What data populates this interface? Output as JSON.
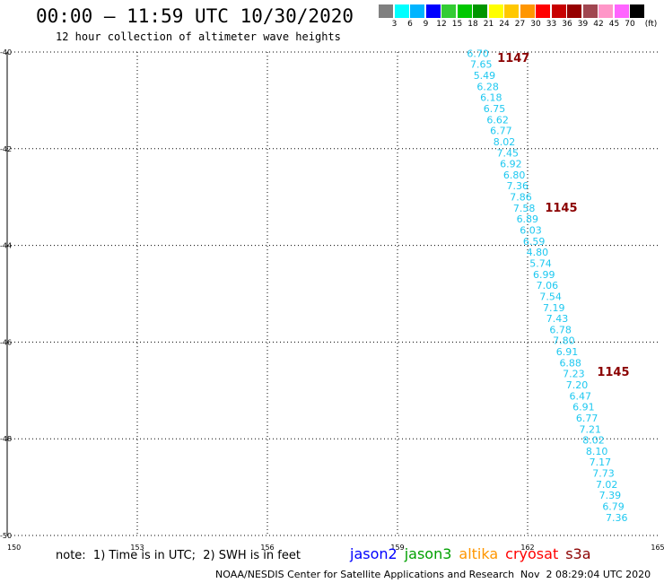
{
  "header": {
    "title": "00:00 – 11:59 UTC 10/30/2020",
    "subtitle": "12 hour collection of altimeter wave heights"
  },
  "colorbar": {
    "unit_label": "(ft)",
    "swatches": [
      {
        "color": "#808080",
        "label": ""
      },
      {
        "color": "#00ffff",
        "label": "3"
      },
      {
        "color": "#00b4ff",
        "label": "6"
      },
      {
        "color": "#0000ff",
        "label": "9"
      },
      {
        "color": "#33cc33",
        "label": "12"
      },
      {
        "color": "#00c800",
        "label": "15"
      },
      {
        "color": "#009600",
        "label": "18"
      },
      {
        "color": "#ffff00",
        "label": "21"
      },
      {
        "color": "#ffc800",
        "label": "24"
      },
      {
        "color": "#ff9600",
        "label": "27"
      },
      {
        "color": "#ff0000",
        "label": "30"
      },
      {
        "color": "#c80000",
        "label": "33"
      },
      {
        "color": "#960000",
        "label": "36"
      },
      {
        "color": "#a04650",
        "label": "39"
      },
      {
        "color": "#ff96c8",
        "label": "42"
      },
      {
        "color": "#ff64ff",
        "label": "45"
      },
      {
        "color": "#000000",
        "label": "70"
      }
    ]
  },
  "map": {
    "lon_ticks": [
      "150",
      "153",
      "156",
      "159",
      "162",
      "165"
    ],
    "lat_ticks": [
      "-40",
      "-42",
      "-44",
      "-46",
      "-48",
      "-50"
    ],
    "lon_range": [
      150,
      165
    ],
    "lat_range": [
      -40,
      -50
    ],
    "track_color": "#1ec8f0",
    "wave_heights": [
      "6.70",
      "7.65",
      "5.49",
      "6.28",
      "6.18",
      "6.75",
      "6.62",
      "6.77",
      "8.02",
      "7.45",
      "6.92",
      "6.80",
      "7.36",
      "7.86",
      "7.58",
      "6.89",
      "6.03",
      "6.59",
      "4.80",
      "5.74",
      "6.99",
      "7.06",
      "7.54",
      "7.19",
      "7.43",
      "6.78",
      "7.80",
      "6.91",
      "6.88",
      "7.23",
      "7.20",
      "6.47",
      "6.91",
      "6.77",
      "7.21",
      "8.02",
      "8.10",
      "7.17",
      "7.73",
      "7.02",
      "7.39",
      "6.79",
      "7.36"
    ],
    "pass_labels": [
      {
        "text": "1147",
        "lon": 161.3,
        "lat": -40.2
      },
      {
        "text": "1145",
        "lon": 162.4,
        "lat": -43.3
      },
      {
        "text": "1145",
        "lon": 163.6,
        "lat": -46.7
      }
    ],
    "track_start": {
      "lon": 160.6,
      "lat": -40.1
    },
    "track_end": {
      "lon": 163.8,
      "lat": -49.7
    }
  },
  "note": "note:  1) Time is in UTC;  2) SWH is in feet",
  "satellites": [
    {
      "name": "jason2",
      "color": "#0000ff"
    },
    {
      "name": "jason3",
      "color": "#00a000"
    },
    {
      "name": "altika",
      "color": "#ff9600"
    },
    {
      "name": "cryosat",
      "color": "#ff0000"
    },
    {
      "name": "s3a",
      "color": "#8b0000"
    }
  ],
  "credit": "NOAA/NESDIS Center for Satellite Applications and Research",
  "credit_time": "Nov  2 08:29:04 UTC 2020"
}
